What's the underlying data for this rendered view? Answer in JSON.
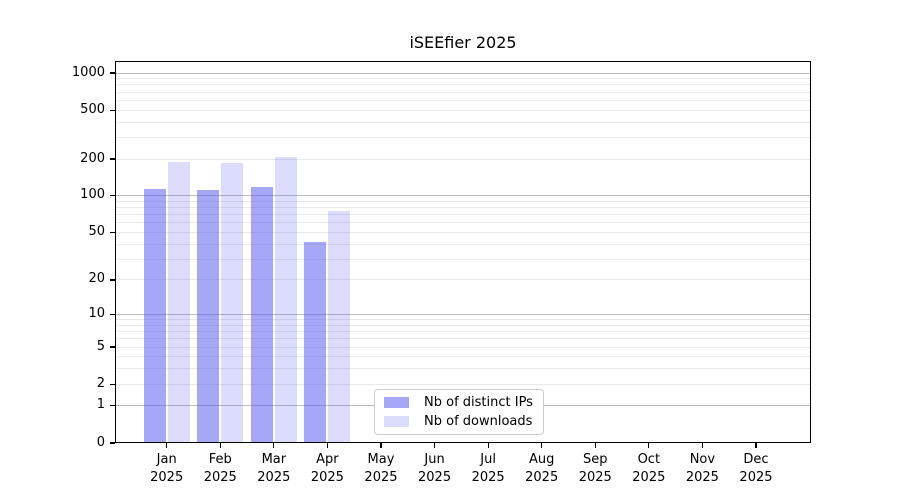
{
  "window": {
    "background": "#ffffff"
  },
  "chart_data": {
    "type": "bar",
    "title": "iSEEfier 2025",
    "categories": [
      "Jan",
      "Feb",
      "Mar",
      "Apr",
      "May",
      "Jun",
      "Jul",
      "Aug",
      "Sep",
      "Oct",
      "Nov",
      "Dec"
    ],
    "category_sublabel": "2025",
    "series": [
      {
        "name": "Nb of distinct IPs",
        "key": "distinct-ips",
        "color": "#a9a9f7",
        "fill": "rgba(80,80,240,0.50)",
        "values": [
          113,
          112,
          119,
          42,
          0,
          0,
          0,
          0,
          0,
          0,
          0,
          0
        ]
      },
      {
        "name": "Nb of downloads",
        "key": "downloads",
        "color": "#dcdcf8",
        "fill": "rgba(80,80,240,0.20)",
        "values": [
          190,
          186,
          209,
          75,
          0,
          0,
          0,
          0,
          0,
          0,
          0,
          0
        ]
      }
    ],
    "xlabel": "",
    "ylabel": "",
    "yscale": "log1p",
    "yticks": [
      0,
      1,
      2,
      5,
      10,
      20,
      50,
      100,
      200,
      500,
      1000
    ],
    "ylim": [
      0,
      1250
    ],
    "grid": {
      "enabled": true,
      "major_ticks": [
        1,
        10,
        100,
        1000
      ],
      "major_color": "#bcbcbc",
      "minor_color": "#e9e9e9"
    },
    "legend_position": "inside-bottom-center"
  }
}
